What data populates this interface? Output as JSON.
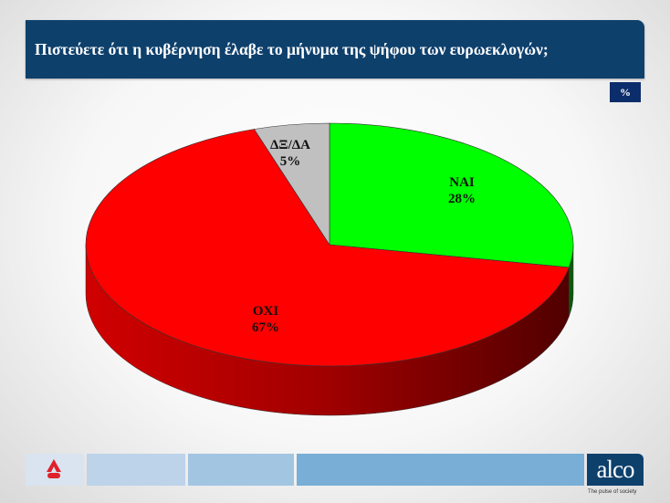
{
  "header": {
    "title": "Πιστεύετε ότι η κυβέρνηση έλαβε το μήνυμα της ψήφου των ευρωεκλογών;",
    "unit": "%"
  },
  "chart_data": {
    "type": "pie",
    "style": "3d",
    "title": "Πιστεύετε ότι η κυβέρνηση έλαβε το μήνυμα της ψήφου των ευρωεκλογών;",
    "slices": [
      {
        "label": "ΝΑΙ",
        "value": 28,
        "value_label": "28%",
        "color": "#00ff00",
        "side_color": "#0a5a0a"
      },
      {
        "label": "ΟΧΙ",
        "value": 67,
        "value_label": "67%",
        "color": "#ff0000",
        "side_color": "#8b0000"
      },
      {
        "label": "ΔΞ/ΔΑ",
        "value": 5,
        "value_label": "5%",
        "color": "#c0c0c0",
        "side_color": "#808080"
      }
    ]
  },
  "footer": {
    "brand": "alco",
    "tagline": "The pulse of society",
    "colors": [
      "#d9e4f0",
      "#bcd3ea",
      "#a2c5e2",
      "#79aed6"
    ]
  }
}
